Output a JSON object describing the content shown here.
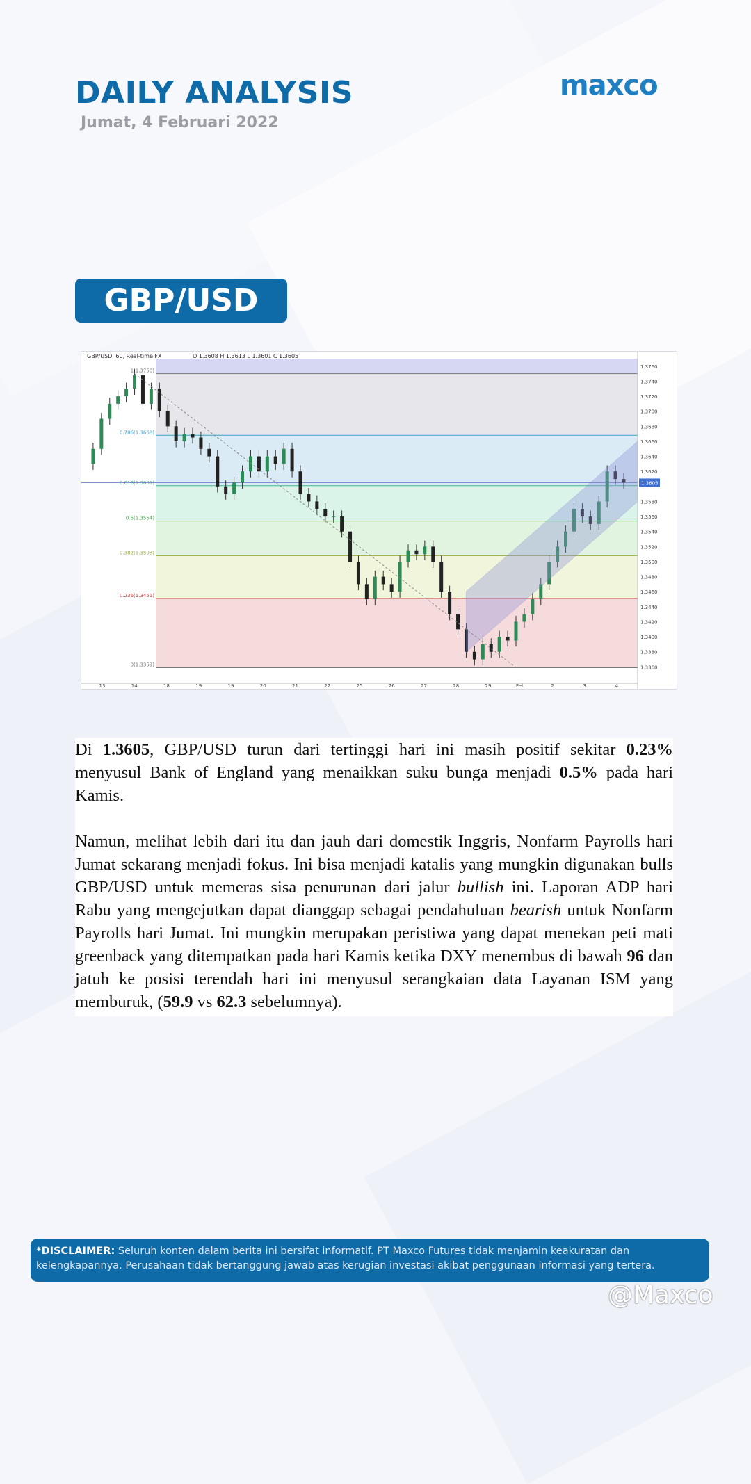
{
  "header": {
    "title": "DAILY ANALYSIS",
    "date": "Jumat, 4 Februari 2022",
    "logo": "maxco"
  },
  "pair": "GBP/USD",
  "chart_data": {
    "type": "candlestick",
    "legend_text": "GBP/USD, 60, Real-time FX",
    "ohlc_text": "O 1.3608  H 1.3613  L 1.3601  C 1.3605",
    "current_price_label": "1.3605",
    "ylim": [
      1.334,
      1.377
    ],
    "y_ticks": [
      {
        "value": 1.376,
        "label": "1.3760"
      },
      {
        "value": 1.374,
        "label": "1.3740"
      },
      {
        "value": 1.372,
        "label": "1.3720"
      },
      {
        "value": 1.37,
        "label": "1.3700"
      },
      {
        "value": 1.368,
        "label": "1.3680"
      },
      {
        "value": 1.366,
        "label": "1.3660"
      },
      {
        "value": 1.364,
        "label": "1.3640"
      },
      {
        "value": 1.362,
        "label": "1.3620"
      },
      {
        "value": 1.358,
        "label": "1.3580"
      },
      {
        "value": 1.356,
        "label": "1.3560"
      },
      {
        "value": 1.354,
        "label": "1.3540"
      },
      {
        "value": 1.352,
        "label": "1.3520"
      },
      {
        "value": 1.35,
        "label": "1.3500"
      },
      {
        "value": 1.348,
        "label": "1.3480"
      },
      {
        "value": 1.346,
        "label": "1.3460"
      },
      {
        "value": 1.344,
        "label": "1.3440"
      },
      {
        "value": 1.342,
        "label": "1.3420"
      },
      {
        "value": 1.34,
        "label": "1.3400"
      },
      {
        "value": 1.338,
        "label": "1.3380"
      },
      {
        "value": 1.336,
        "label": "1.3360"
      }
    ],
    "x_ticks": [
      "13",
      "14",
      "18",
      "19",
      "19",
      "20",
      "21",
      "22",
      "25",
      "26",
      "27",
      "28",
      "29",
      "Feb",
      "2",
      "3",
      "4"
    ],
    "fib_levels": [
      {
        "name": "1",
        "value": 1.375,
        "label": "1(1.3750)",
        "color": "#777777"
      },
      {
        "name": "0.786",
        "value": 1.3668,
        "label": "0.786(1.3668)",
        "color": "#3f9fc7"
      },
      {
        "name": "0.618",
        "value": 1.3601,
        "label": "0.618(1.3601)",
        "color": "#3fb98a"
      },
      {
        "name": "0.5",
        "value": 1.3554,
        "label": "0.5(1.3554)",
        "color": "#3fae4a"
      },
      {
        "name": "0.382",
        "value": 1.3508,
        "label": "0.382(1.3508)",
        "color": "#9aa93b"
      },
      {
        "name": "0.236",
        "value": 1.3451,
        "label": "0.236(1.3451)",
        "color": "#cc4444"
      },
      {
        "name": "0",
        "value": 1.3359,
        "label": "0(1.3359)",
        "color": "#777777"
      }
    ],
    "zone_colors": [
      "#cfd0f0",
      "#e3e3e8",
      "#d3e8f3",
      "#d4f2e6",
      "#dbf2d9",
      "#edf3d5",
      "#f5d5d6"
    ],
    "prices": [
      1.363,
      1.365,
      1.369,
      1.371,
      1.372,
      1.373,
      1.3748,
      1.371,
      1.373,
      1.37,
      1.368,
      1.366,
      1.367,
      1.3665,
      1.365,
      1.364,
      1.36,
      1.359,
      1.3605,
      1.362,
      1.364,
      1.362,
      1.364,
      1.363,
      1.365,
      1.362,
      1.359,
      1.358,
      1.357,
      1.356,
      1.356,
      1.354,
      1.35,
      1.347,
      1.345,
      1.348,
      1.347,
      1.346,
      1.35,
      1.3515,
      1.351,
      1.352,
      1.35,
      1.346,
      1.343,
      1.341,
      1.338,
      1.337,
      1.339,
      1.338,
      1.34,
      1.3395,
      1.342,
      1.343,
      1.345,
      1.347,
      1.35,
      1.352,
      1.354,
      1.357,
      1.356,
      1.355,
      1.358,
      1.362,
      1.361,
      1.3605
    ]
  },
  "article": {
    "p1": [
      {
        "t": "Di "
      },
      {
        "t": "1.3605",
        "b": true
      },
      {
        "t": ", GBP/USD turun dari tertinggi hari ini masih positif sekitar "
      },
      {
        "t": "0.23%",
        "b": true
      },
      {
        "t": " menyusul Bank of England yang menaikkan suku bunga menjadi "
      },
      {
        "t": "0.5%",
        "b": true
      },
      {
        "t": " pada hari Kamis."
      }
    ],
    "p2": [
      {
        "t": "Namun, melihat lebih dari itu dan jauh dari domestik Inggris, Nonfarm Payrolls hari Jumat sekarang menjadi fokus. Ini bisa menjadi katalis yang mungkin digunakan bulls GBP/USD untuk memeras sisa penurunan dari jalur "
      },
      {
        "t": "bullish",
        "i": true
      },
      {
        "t": " ini. Laporan ADP hari Rabu yang mengejutkan dapat dianggap sebagai pendahuluan "
      },
      {
        "t": "bearish",
        "i": true
      },
      {
        "t": " untuk Nonfarm Payrolls hari Jumat. Ini mungkin merupakan peristiwa yang dapat menekan peti mati greenback yang ditempatkan pada hari Kamis ketika DXY menembus di bawah "
      },
      {
        "t": "96",
        "b": true
      },
      {
        "t": " dan jatuh ke posisi terendah hari ini menyusul serangkaian data Layanan ISM yang memburuk, ("
      },
      {
        "t": "59.9",
        "b": true
      },
      {
        "t": " vs "
      },
      {
        "t": "62.3",
        "b": true
      },
      {
        "t": " sebelumnya)."
      }
    ]
  },
  "disclaimer": {
    "label": "*DISCLAIMER:",
    "text": " Seluruh konten dalam berita ini bersifat informatif. PT Maxco Futures tidak menjamin keakuratan dan kelengkapannya. Perusahaan tidak bertanggung jawab atas kerugian investasi akibat penggunaan informasi yang tertera."
  },
  "watermark": "@Maxco"
}
